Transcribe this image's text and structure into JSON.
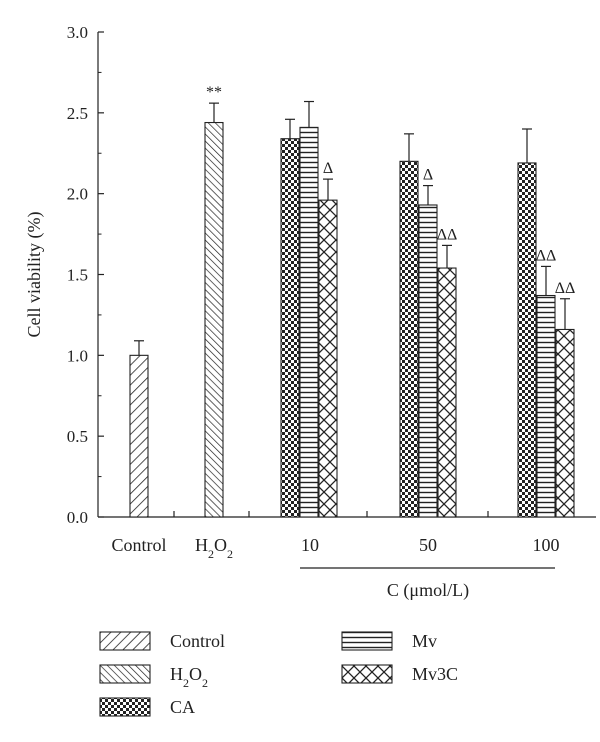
{
  "chart_data": {
    "type": "bar",
    "ylabel": "Cell viability (%)",
    "xlabel": "C (μmol/L)",
    "ylim": [
      0,
      3.0
    ],
    "yticks": [
      "0.0",
      "0.5",
      "1.0",
      "1.5",
      "2.0",
      "2.5",
      "3.0"
    ],
    "categories": [
      "Control",
      "H2O2",
      "10",
      "50",
      "100"
    ],
    "category_labels": [
      {
        "main": "Control",
        "sub": ""
      },
      {
        "main": "H",
        "sub": "2",
        "main2": "O",
        "sub2": "2"
      },
      {
        "main": "10"
      },
      {
        "main": "50"
      },
      {
        "main": "100"
      }
    ],
    "series": [
      {
        "name": "Control",
        "pattern": "diag-right",
        "values": [
          1.0,
          null,
          null,
          null,
          null
        ],
        "errors": [
          0.09,
          null,
          null,
          null,
          null
        ]
      },
      {
        "name": "H2O2",
        "pattern": "diag-left",
        "values": [
          null,
          2.44,
          null,
          null,
          null
        ],
        "errors": [
          null,
          0.12,
          null,
          null,
          null
        ]
      },
      {
        "name": "CA",
        "pattern": "checker",
        "values": [
          null,
          null,
          2.34,
          2.2,
          2.19
        ],
        "errors": [
          null,
          null,
          0.12,
          0.17,
          0.21
        ]
      },
      {
        "name": "Mv",
        "pattern": "horizontal",
        "values": [
          null,
          null,
          2.41,
          1.93,
          1.37
        ],
        "errors": [
          null,
          null,
          0.16,
          0.12,
          0.18
        ]
      },
      {
        "name": "Mv3C",
        "pattern": "crosshatch",
        "values": [
          null,
          null,
          1.96,
          1.54,
          1.16
        ],
        "errors": [
          null,
          null,
          0.13,
          0.14,
          0.19
        ]
      }
    ],
    "annotations": [
      {
        "category": "H2O2",
        "series": "H2O2",
        "text": "**"
      },
      {
        "category": "10",
        "series": "Mv3C",
        "text": "Δ"
      },
      {
        "category": "50",
        "series": "Mv",
        "text": "Δ"
      },
      {
        "category": "50",
        "series": "Mv3C",
        "text": "ΔΔ"
      },
      {
        "category": "100",
        "series": "Mv",
        "text": "ΔΔ"
      },
      {
        "category": "100",
        "series": "Mv3C",
        "text": "ΔΔ"
      }
    ],
    "legend": {
      "placement": "bottom",
      "entries": [
        {
          "series": "Control",
          "label": "Control"
        },
        {
          "series": "H2O2",
          "label": "H",
          "sub": "2",
          "label2": "O",
          "sub2": "2"
        },
        {
          "series": "CA",
          "label": "CA"
        },
        {
          "series": "Mv",
          "label": "Mv"
        },
        {
          "series": "Mv3C",
          "label": "Mv3C"
        }
      ]
    },
    "grid": false
  },
  "colors": {
    "ink": "#222222",
    "fill": "#ffffff"
  }
}
